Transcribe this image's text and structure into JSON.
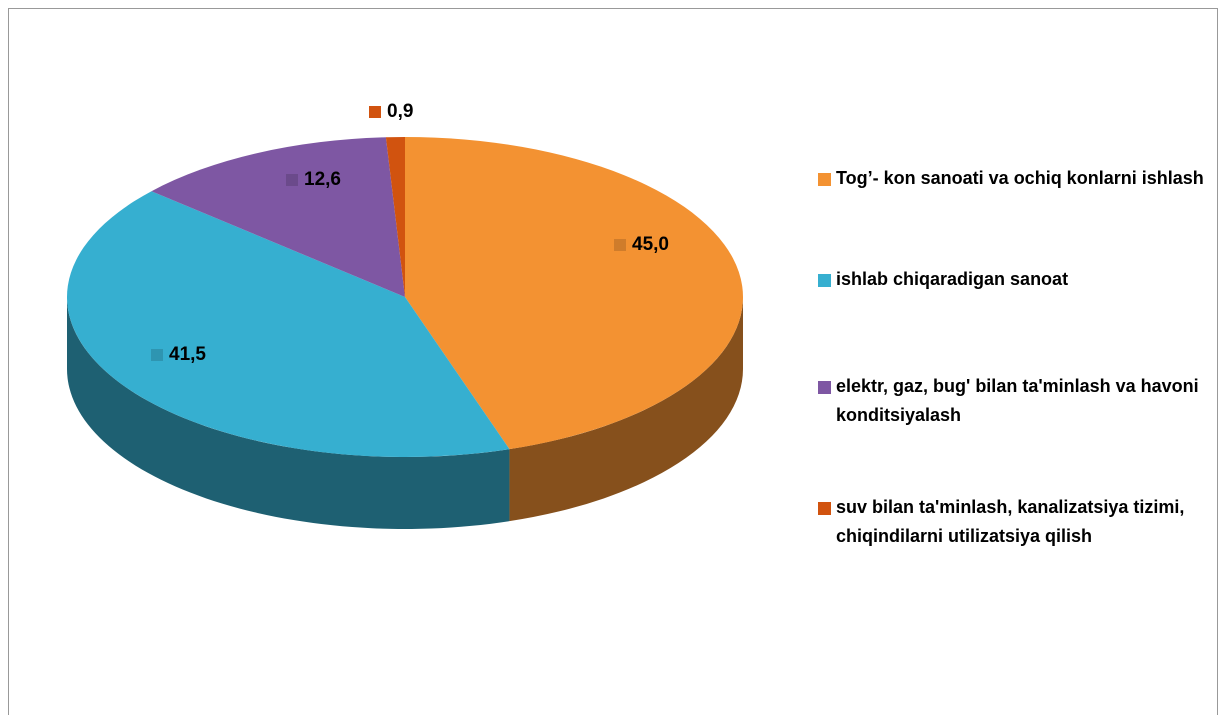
{
  "chart_data": {
    "type": "pie",
    "categories": [
      "Tog’- kon sanoati va ochiq konlarni ishlash",
      "ishlab chiqaradigan  sanoat",
      "elektr, gaz, bug'  bilan ta'minlash va havoni konditsiyalash",
      "suv bilan ta'minlash, kanalizatsiya tizimi, chiqindilarni utilizatsiya qilish"
    ],
    "values": [
      45.0,
      41.5,
      12.6,
      0.9
    ],
    "value_labels": [
      "45,0",
      "41,5",
      "12,6",
      "0,9"
    ],
    "colors": [
      "#f39232",
      "#36afd0",
      "#7e57a3",
      "#d1530f"
    ],
    "legend": "right"
  }
}
